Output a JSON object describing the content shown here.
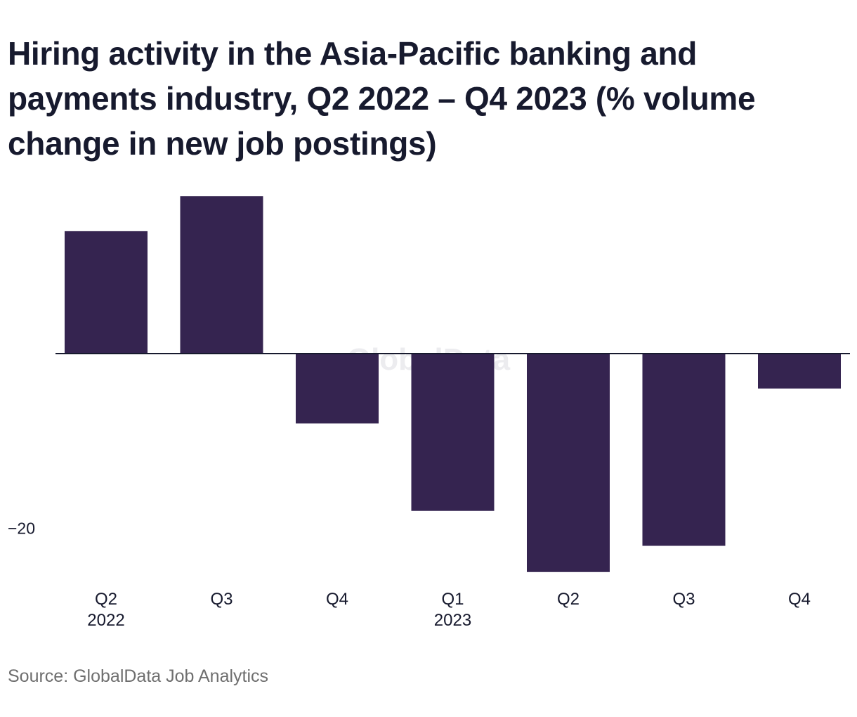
{
  "chart_data": {
    "type": "bar",
    "title": "Hiring activity in the Asia-Pacific banking and payments industry, Q2 2022 – Q4 2023 (% volume change in new job postings)",
    "categories": [
      "Q2",
      "Q3",
      "Q4",
      "Q1",
      "Q2",
      "Q3",
      "Q4"
    ],
    "year_labels": [
      "2022",
      "",
      "",
      "2023",
      "",
      "",
      ""
    ],
    "values": [
      14,
      18,
      -8,
      -18,
      -25,
      -22,
      -4
    ],
    "y_ticks": [
      {
        "value": -20,
        "label": "−20"
      }
    ],
    "ylim": [
      -25.5,
      23
    ],
    "grid": false,
    "legend": "none",
    "colors": {
      "bar": "#352450",
      "axis": "#171A2E",
      "tick_label": "#171A2E"
    }
  },
  "watermark": "GlobalData",
  "source": "Source: GlobalData Job Analytics"
}
